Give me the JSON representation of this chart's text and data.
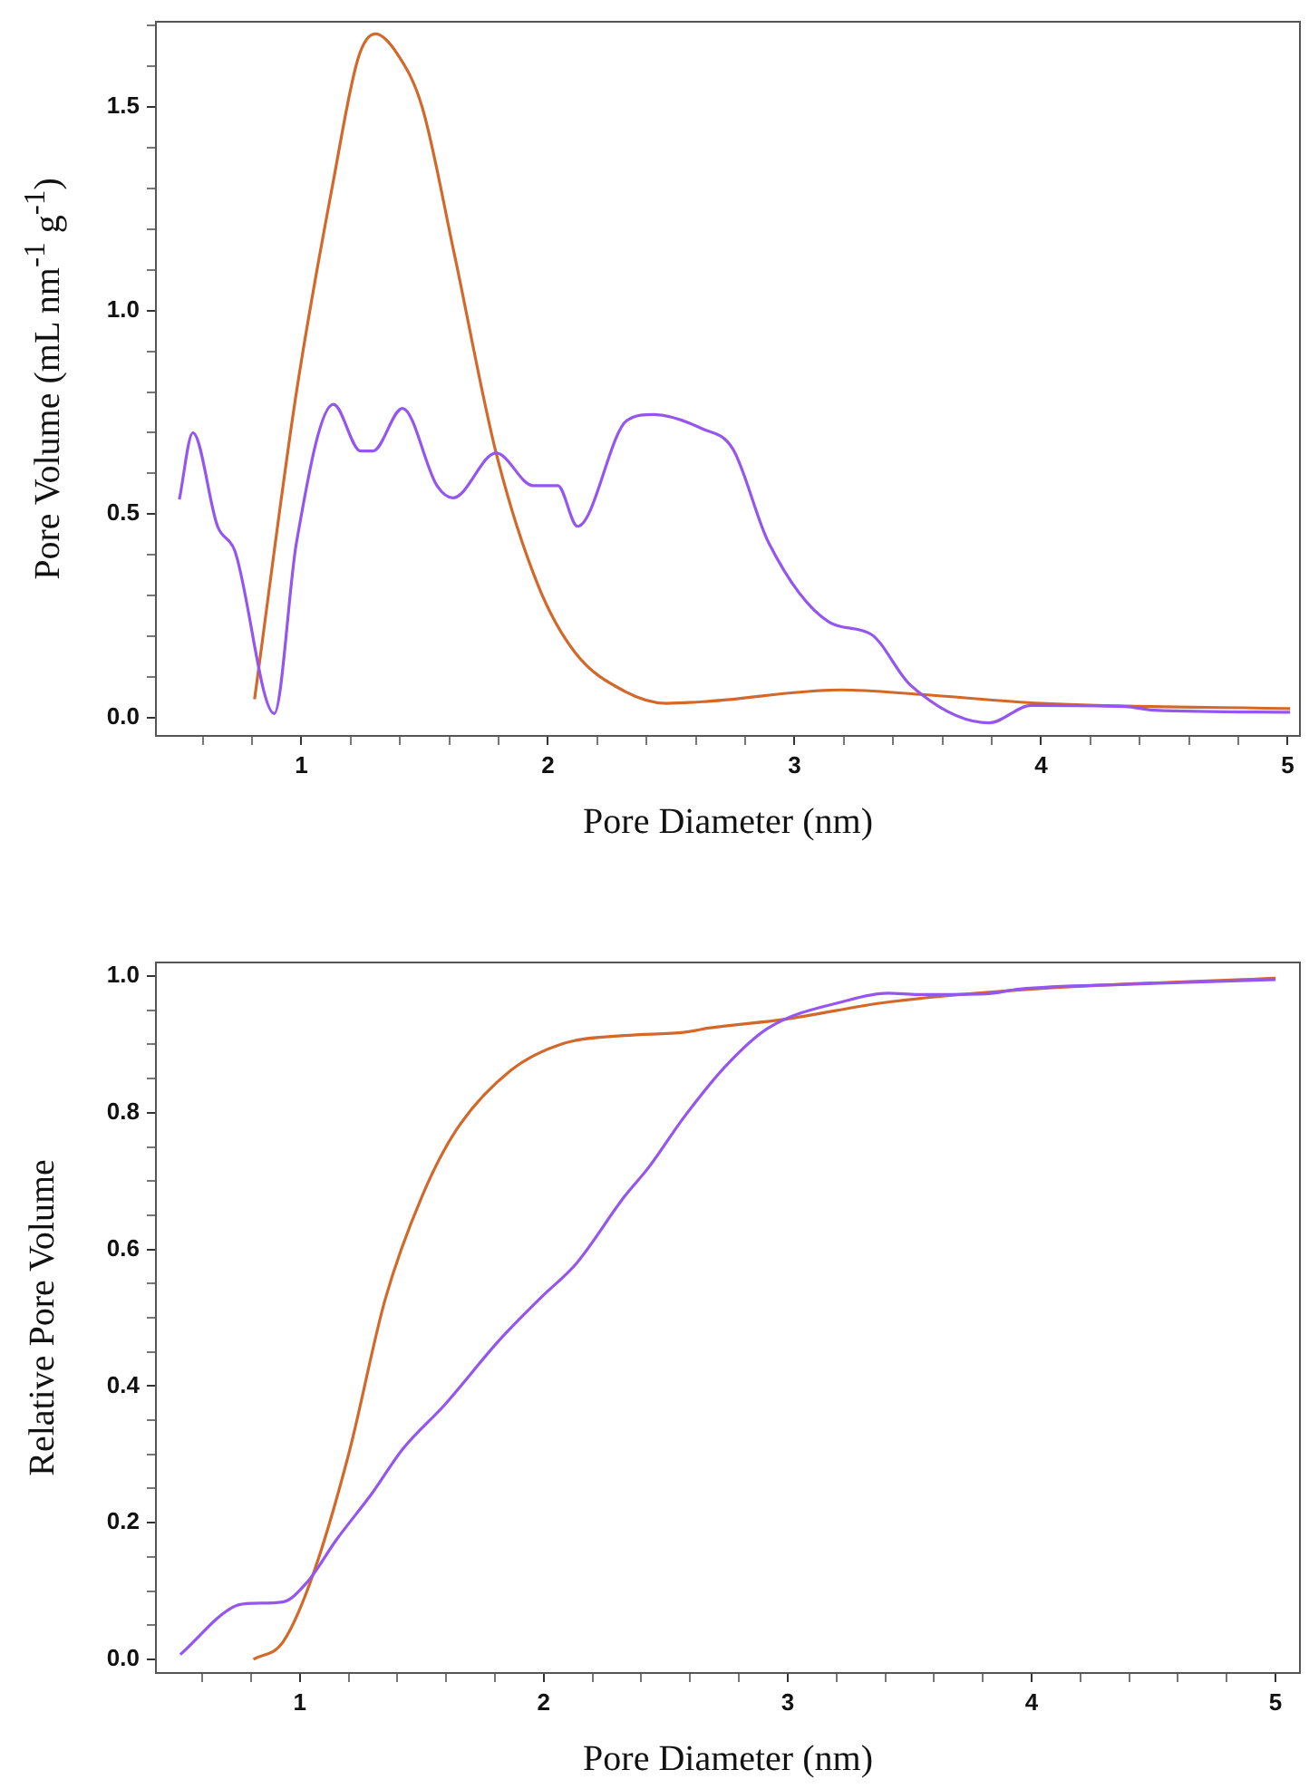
{
  "chart_data": [
    {
      "type": "line",
      "xlabel": "Pore Diameter (nm)",
      "ylabel": "Pore Volume (mL nm$^{-1}$ g$^{-1}$)",
      "xlim": [
        0.41,
        5.05
      ],
      "ylim": [
        -0.045,
        1.71
      ],
      "xticks": [
        {
          "value": 0.6,
          "label": null
        },
        {
          "value": 0.8,
          "label": null
        },
        1,
        {
          "value": 1.2,
          "label": null
        },
        {
          "value": 1.4,
          "label": null
        },
        {
          "value": 1.6,
          "label": null
        },
        {
          "value": 1.8,
          "label": null
        },
        2,
        {
          "value": 2.2,
          "label": null
        },
        {
          "value": 2.4,
          "label": null
        },
        {
          "value": 2.6,
          "label": null
        },
        {
          "value": 2.8,
          "label": null
        },
        3,
        {
          "value": 3.2,
          "label": null
        },
        {
          "value": 3.4,
          "label": null
        },
        {
          "value": 3.6,
          "label": null
        },
        {
          "value": 3.8,
          "label": null
        },
        4,
        {
          "value": 4.2,
          "label": null
        },
        {
          "value": 4.4,
          "label": null
        },
        {
          "value": 4.6,
          "label": null
        },
        {
          "value": 4.8,
          "label": null
        },
        5
      ],
      "yticks": [
        {
          "value": 0,
          "label": "0.0"
        },
        {
          "value": 0.1,
          "label": null
        },
        {
          "value": 0.2,
          "label": null
        },
        {
          "value": 0.3,
          "label": null
        },
        {
          "value": 0.4,
          "label": null
        },
        0.5,
        {
          "value": 0.6,
          "label": null
        },
        {
          "value": 0.7,
          "label": null
        },
        {
          "value": 0.8,
          "label": null
        },
        {
          "value": 0.9,
          "label": null
        },
        {
          "value": 1,
          "label": "1.0"
        },
        {
          "value": 1.1,
          "label": null
        },
        {
          "value": 1.2,
          "label": null
        },
        {
          "value": 1.3,
          "label": null
        },
        {
          "value": 1.4,
          "label": null
        },
        1.5,
        {
          "value": 1.6,
          "label": null
        },
        {
          "value": 1.7,
          "label": null
        }
      ],
      "marker": "none",
      "series": [
        {
          "color": "#9456ee",
          "x": [
            0.505,
            0.56,
            0.66,
            0.73,
            0.89,
            0.98,
            1.13,
            1.24,
            1.29,
            1.41,
            1.55,
            1.615,
            1.79,
            1.94,
            2.04,
            2.12,
            2.32,
            2.43,
            2.625,
            2.75,
            2.895,
            3.14,
            3.31,
            3.47,
            3.79,
            3.96,
            4.34,
            4.46,
            5.01
          ],
          "values": [
            0.536,
            0.7,
            0.47,
            0.41,
            0.01,
            0.43,
            0.77,
            0.655,
            0.655,
            0.76,
            0.57,
            0.54,
            0.65,
            0.57,
            0.57,
            0.47,
            0.73,
            0.745,
            0.71,
            0.66,
            0.43,
            0.235,
            0.205,
            0.08,
            -0.013,
            0.03,
            0.027,
            0.018,
            0.013
          ]
        },
        {
          "color": "#d2692a",
          "x": [
            0.81,
            0.98,
            1.13,
            1.23,
            1.3,
            1.39,
            1.49,
            1.62,
            1.79,
            1.96,
            2.11,
            2.31,
            2.48,
            2.65,
            3.19,
            3.51,
            4.0,
            5.01
          ],
          "values": [
            0.045,
            0.8,
            1.32,
            1.62,
            1.68,
            1.63,
            1.5,
            1.14,
            0.65,
            0.325,
            0.16,
            0.065,
            0.035,
            0.04,
            0.068,
            0.057,
            0.035,
            0.022
          ]
        }
      ]
    },
    {
      "type": "line",
      "xlabel": "Pore Diameter (nm)",
      "ylabel": "Relative Pore Volume",
      "xlim": [
        0.41,
        5.1
      ],
      "ylim": [
        -0.02,
        1.02
      ],
      "xticks": [
        {
          "value": 0.6,
          "label": null
        },
        {
          "value": 0.8,
          "label": null
        },
        1,
        {
          "value": 1.2,
          "label": null
        },
        {
          "value": 1.4,
          "label": null
        },
        {
          "value": 1.6,
          "label": null
        },
        {
          "value": 1.8,
          "label": null
        },
        2,
        {
          "value": 2.2,
          "label": null
        },
        {
          "value": 2.4,
          "label": null
        },
        {
          "value": 2.6,
          "label": null
        },
        {
          "value": 2.8,
          "label": null
        },
        3,
        {
          "value": 3.2,
          "label": null
        },
        {
          "value": 3.4,
          "label": null
        },
        {
          "value": 3.6,
          "label": null
        },
        {
          "value": 3.8,
          "label": null
        },
        4,
        {
          "value": 4.2,
          "label": null
        },
        {
          "value": 4.4,
          "label": null
        },
        {
          "value": 4.6,
          "label": null
        },
        {
          "value": 4.8,
          "label": null
        },
        5
      ],
      "yticks": [
        {
          "value": 0,
          "label": "0.0"
        },
        {
          "value": 0.05,
          "label": null
        },
        {
          "value": 0.1,
          "label": null
        },
        {
          "value": 0.15,
          "label": null
        },
        0.2,
        {
          "value": 0.25,
          "label": null
        },
        {
          "value": 0.3,
          "label": null
        },
        {
          "value": 0.35,
          "label": null
        },
        0.4,
        {
          "value": 0.45,
          "label": null
        },
        {
          "value": 0.5,
          "label": null
        },
        {
          "value": 0.55,
          "label": null
        },
        0.6,
        {
          "value": 0.65,
          "label": null
        },
        {
          "value": 0.7,
          "label": null
        },
        {
          "value": 0.75,
          "label": null
        },
        0.8,
        {
          "value": 0.85,
          "label": null
        },
        {
          "value": 0.9,
          "label": null
        },
        {
          "value": 0.95,
          "label": null
        },
        {
          "value": 1,
          "label": "1.0"
        }
      ],
      "marker": "none",
      "series": [
        {
          "color": "#9456ee",
          "x": [
            0.51,
            0.735,
            0.81,
            0.93,
            1.03,
            1.15,
            1.3,
            1.42,
            1.595,
            1.815,
            1.99,
            2.135,
            2.33,
            2.43,
            2.58,
            2.75,
            2.92,
            3.24,
            3.41,
            3.535,
            3.81,
            3.95,
            4.39,
            5.0
          ],
          "values": [
            0.007,
            0.078,
            0.082,
            0.084,
            0.113,
            0.175,
            0.245,
            0.307,
            0.373,
            0.466,
            0.53,
            0.58,
            0.677,
            0.72,
            0.796,
            0.87,
            0.924,
            0.964,
            0.975,
            0.973,
            0.974,
            0.981,
            0.988,
            0.995
          ]
        },
        {
          "color": "#d2692a",
          "x": [
            0.81,
            0.93,
            1.05,
            1.2,
            1.35,
            1.5,
            1.64,
            1.865,
            2.085,
            2.33,
            2.58,
            2.675,
            2.99,
            3.41,
            4.0,
            5.0
          ],
          "values": [
            0,
            0.025,
            0.12,
            0.3,
            0.527,
            0.677,
            0.774,
            0.862,
            0.902,
            0.913,
            0.918,
            0.924,
            0.937,
            0.962,
            0.981,
            0.997
          ]
        }
      ]
    }
  ]
}
